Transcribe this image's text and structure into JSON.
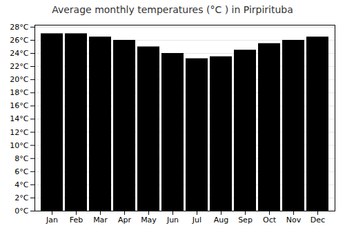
{
  "chart_data": {
    "type": "bar",
    "title": "Average monthly temperatures (°C ) in Pirpirituba",
    "categories": [
      "Jan",
      "Feb",
      "Mar",
      "Apr",
      "May",
      "Jun",
      "Jul",
      "Aug",
      "Sep",
      "Oct",
      "Nov",
      "Dec"
    ],
    "values": [
      27.0,
      27.0,
      26.5,
      26.0,
      25.0,
      24.0,
      23.2,
      23.5,
      24.5,
      25.5,
      26.0,
      26.5
    ],
    "ylim": [
      0,
      28.3
    ],
    "yticks": [
      {
        "value": 0,
        "label": "0°C"
      },
      {
        "value": 2,
        "label": "2°C"
      },
      {
        "value": 4,
        "label": "4°C"
      },
      {
        "value": 6,
        "label": "6°C"
      },
      {
        "value": 8,
        "label": "8°C"
      },
      {
        "value": 10,
        "label": "10°C"
      },
      {
        "value": 12,
        "label": "12°C"
      },
      {
        "value": 14,
        "label": "14°C"
      },
      {
        "value": 16,
        "label": "16°C"
      },
      {
        "value": 18,
        "label": "18°C"
      },
      {
        "value": 20,
        "label": "20°C"
      },
      {
        "value": 22,
        "label": "22°C"
      },
      {
        "value": 24,
        "label": "24°C"
      },
      {
        "value": 26,
        "label": "26°C"
      },
      {
        "value": 28,
        "label": "28°C"
      }
    ],
    "grid": true
  }
}
